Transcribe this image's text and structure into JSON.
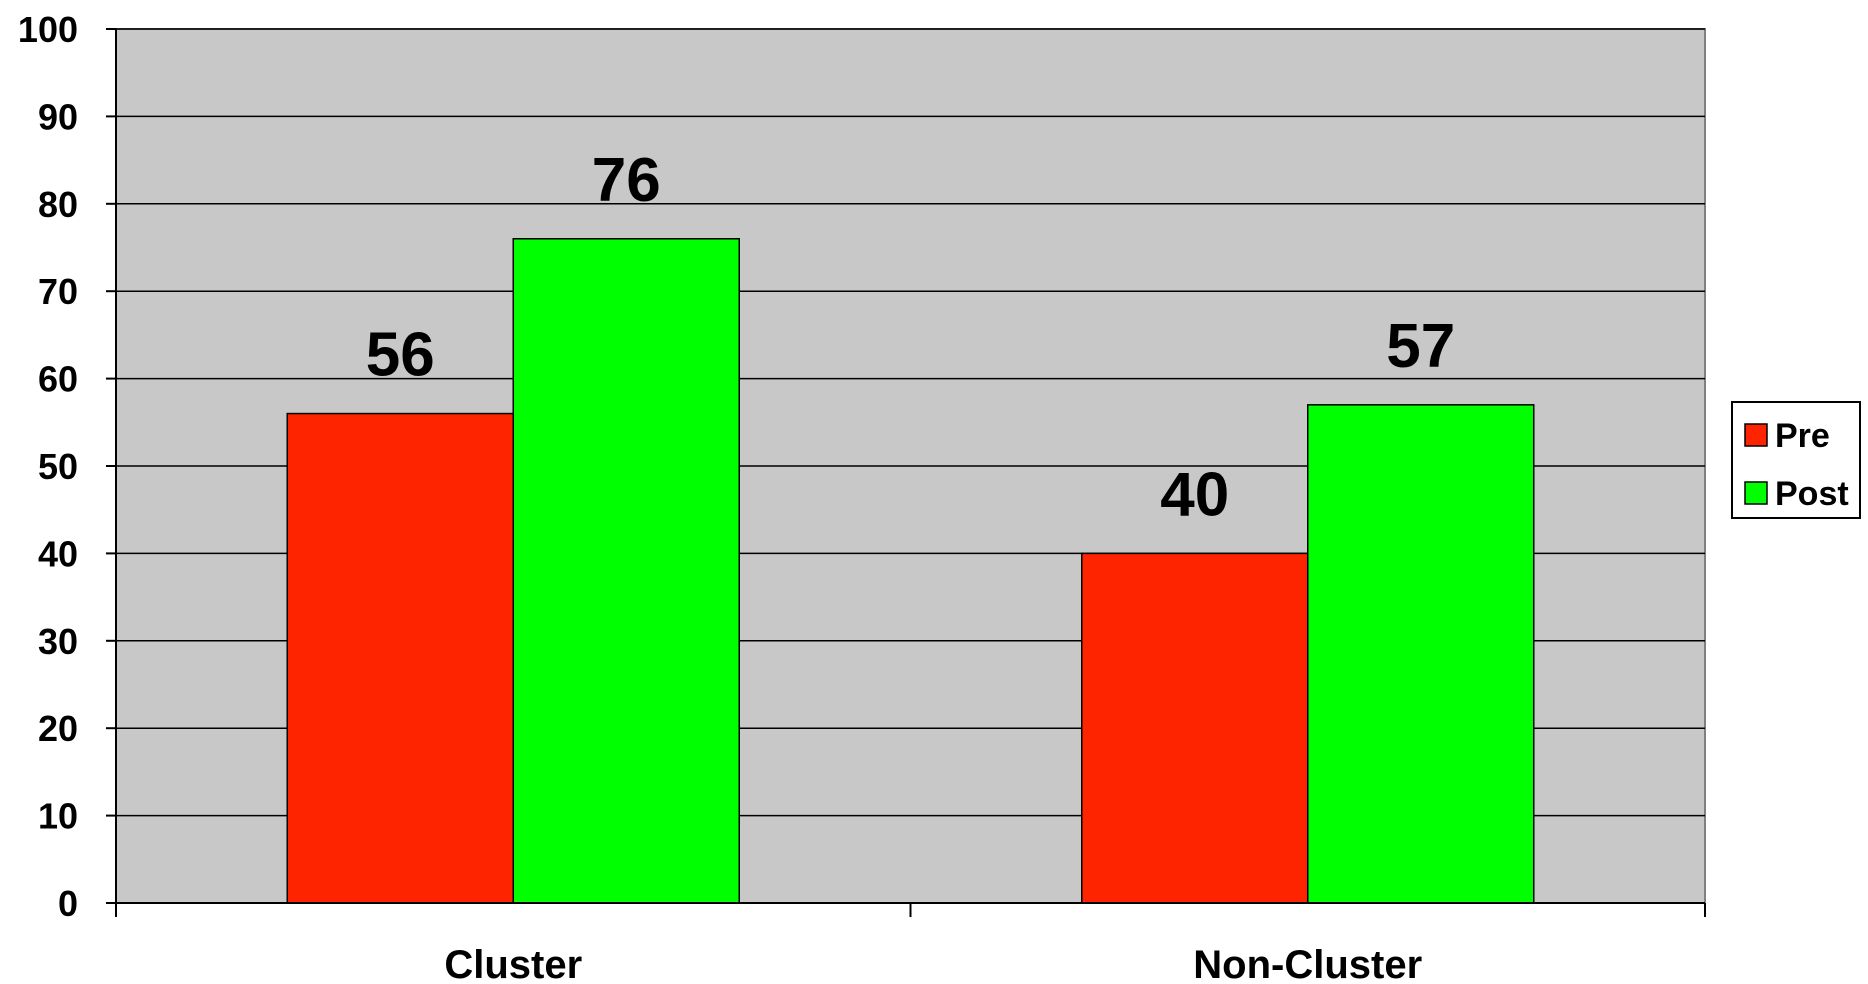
{
  "chart_data": {
    "type": "bar",
    "title": "",
    "xlabel": "",
    "ylabel": "",
    "categories": [
      "Cluster",
      "Non-Cluster"
    ],
    "series": [
      {
        "name": "Pre",
        "values": [
          56,
          40
        ],
        "color": "#FF2400"
      },
      {
        "name": "Post",
        "values": [
          76,
          57
        ],
        "color": "#00FF00"
      }
    ],
    "data_labels": [
      [
        "56",
        "40"
      ],
      [
        "76",
        "57"
      ]
    ],
    "ylim": [
      0,
      100
    ],
    "yticks": [
      0,
      10,
      20,
      30,
      40,
      50,
      60,
      70,
      80,
      90,
      100
    ],
    "grid": true,
    "legend_position": "right",
    "plot_background": "#C8C8C8"
  }
}
